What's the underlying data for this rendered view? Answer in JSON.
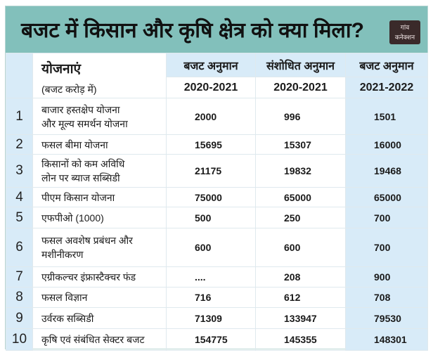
{
  "title": "बजट में किसान और कृषि क्षेत्र को क्या मिला?",
  "logo": {
    "line1": "गांव",
    "line2": "कनेक्शन"
  },
  "header": {
    "scheme_label": "योजनाएं",
    "unit_label": "(बजट करोड़ में)",
    "columns": [
      {
        "label": "बजट अनुमान",
        "year": "2020-2021"
      },
      {
        "label": "संशोधित अनुमान",
        "year": "2020-2021"
      },
      {
        "label": "बजट अनुमान",
        "year": "2021-2022"
      }
    ]
  },
  "rows": [
    {
      "n": "1",
      "name1": "बाजार हस्तक्षेप योजना",
      "name2": "और मूल्य समर्थन योजना",
      "v": [
        "2000",
        "996",
        "1501"
      ]
    },
    {
      "n": "2",
      "name1": "फसल बीमा योजना",
      "name2": "",
      "v": [
        "15695",
        "15307",
        "16000"
      ]
    },
    {
      "n": "3",
      "name1": "किसानों को कम अविधि",
      "name2": "लोन पर ब्याज सब्सिडी",
      "v": [
        "21175",
        "19832",
        "19468"
      ]
    },
    {
      "n": "4",
      "name1": "पीएम किसान योजना",
      "name2": "",
      "v": [
        "75000",
        "65000",
        "65000"
      ]
    },
    {
      "n": "5",
      "name1": "एफपीओ (1000)",
      "name2": "",
      "v": [
        "500",
        "250",
        "700"
      ]
    },
    {
      "n": "6",
      "name1": "फसल अवशेष प्रबंधन और",
      "name2": "मशीनीकरण",
      "v": [
        "600",
        "600",
        "700"
      ]
    },
    {
      "n": "7",
      "name1": "एग्रीकल्चर इंफ्रास्टैक्चर फंड",
      "name2": "",
      "v": [
        "....",
        "208",
        "900"
      ]
    },
    {
      "n": "8",
      "name1": "फसल विज्ञान",
      "name2": "",
      "v": [
        "716",
        "612",
        "708"
      ]
    },
    {
      "n": "9",
      "name1": "उर्वरक सब्सिडी",
      "name2": "",
      "v": [
        "71309",
        "133947",
        "79530"
      ]
    },
    {
      "n": "10",
      "name1": "कृषि एवं संबंधित सेक्टर बजट",
      "name2": "",
      "v": [
        "154775",
        "145355",
        "148301"
      ]
    }
  ]
}
